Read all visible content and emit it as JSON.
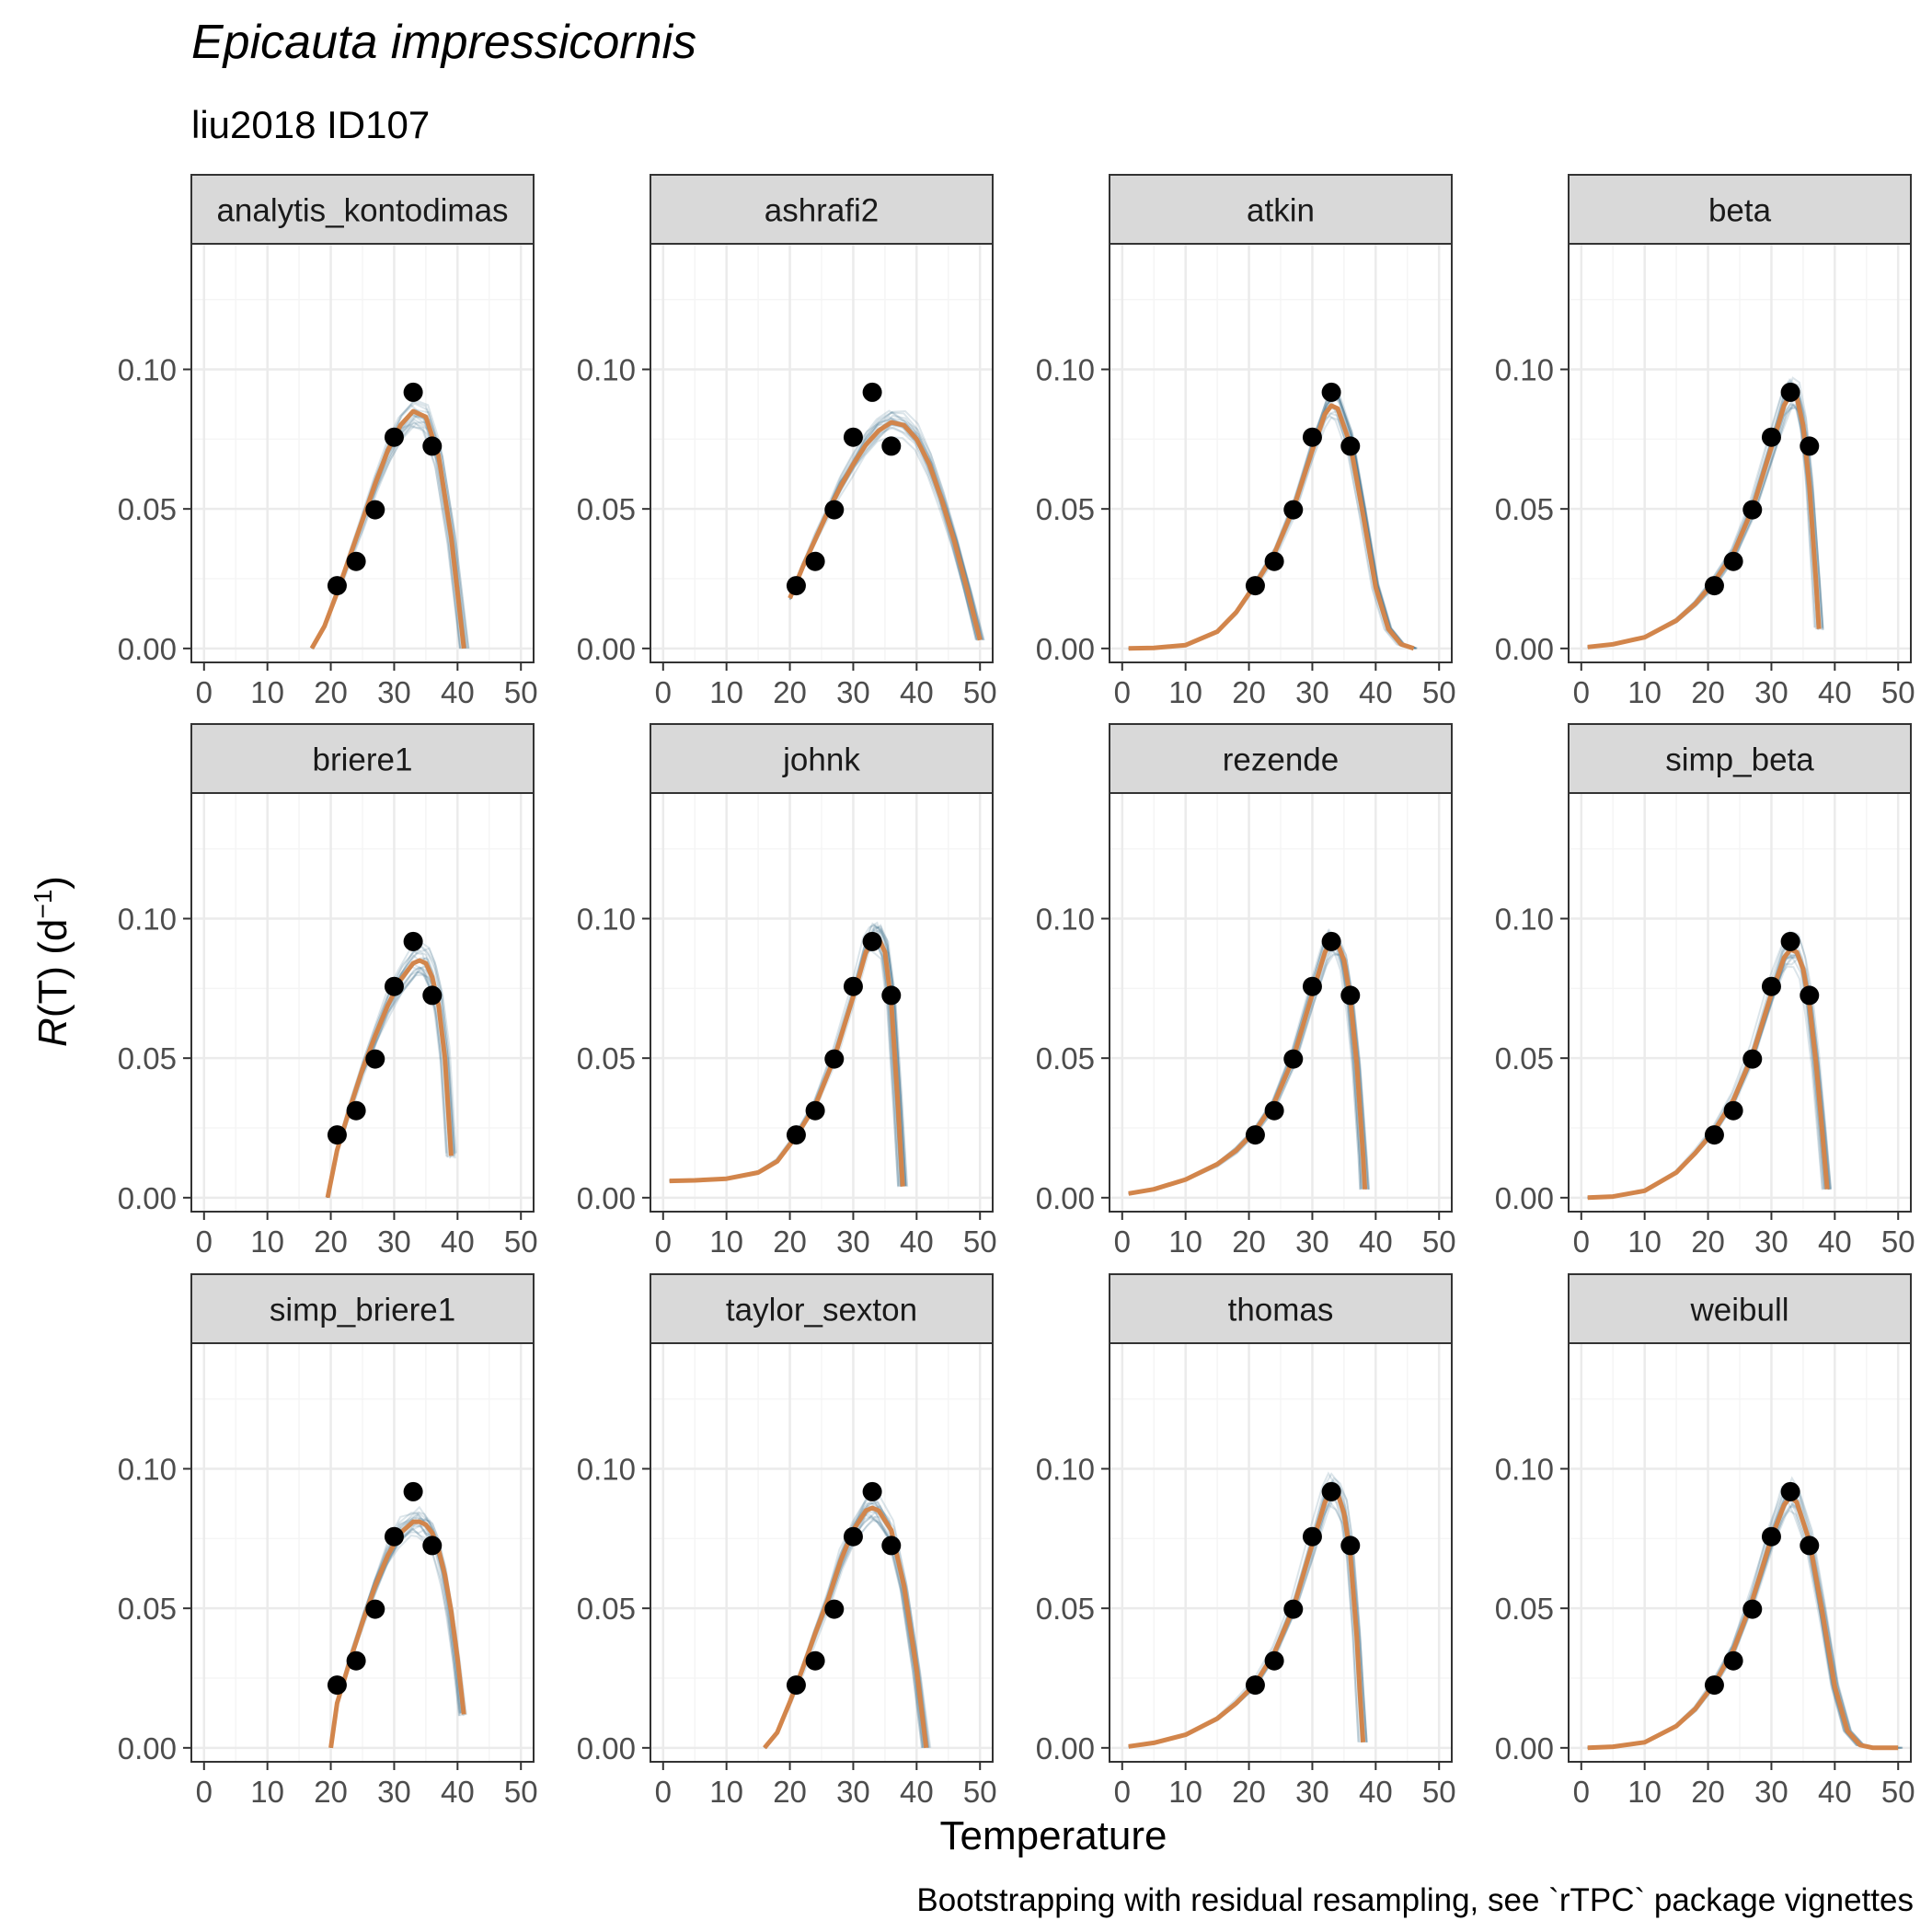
{
  "chart_data": {
    "type": "line",
    "title": "Epicauta impressicornis",
    "subtitle": "liu2018 ID107",
    "xlabel": "Temperature",
    "ylabel_italic": "R",
    "ylabel_rest": "(T) (d",
    "ylabel_sup": "−1",
    "ylabel_close": ")",
    "caption": "Bootstrapping with residual resampling, see `rTPC` package vignettes",
    "xlim": [
      -2,
      52
    ],
    "ylim": [
      -0.005,
      0.145
    ],
    "x_ticks": [
      0,
      10,
      20,
      30,
      40,
      50
    ],
    "x_tick_labels": [
      "0",
      "10",
      "20",
      "30",
      "40",
      "50"
    ],
    "y_ticks": [
      0.0,
      0.05,
      0.1
    ],
    "y_tick_labels": [
      "0.00",
      "0.05",
      "0.10"
    ],
    "grid": true,
    "colors": {
      "fit": "#d2854b",
      "bootstrap": "#3d6f8a",
      "points": "#000000",
      "strip_fill": "#d9d9d9",
      "grid_major": "#ebebeb",
      "grid_minor": "#f5f5f5"
    },
    "observed_points": {
      "x": [
        21,
        24,
        27,
        30,
        33,
        36
      ],
      "y": [
        0.0225,
        0.0312,
        0.0497,
        0.0757,
        0.0918,
        0.0725
      ]
    },
    "panels": [
      {
        "model": "analytis_kontodimas",
        "fit": {
          "x": [
            17,
            19,
            21,
            23,
            25,
            27,
            29,
            31,
            33,
            35,
            37,
            39,
            41
          ],
          "y": [
            0.0,
            0.008,
            0.02,
            0.033,
            0.046,
            0.059,
            0.071,
            0.08,
            0.085,
            0.083,
            0.069,
            0.04,
            0.0
          ]
        }
      },
      {
        "model": "ashrafi2",
        "fit": {
          "x": [
            20,
            22,
            24,
            26,
            28,
            30,
            32,
            34,
            36,
            38,
            40,
            42,
            44,
            46,
            48,
            50
          ],
          "y": [
            0.018,
            0.029,
            0.039,
            0.049,
            0.058,
            0.066,
            0.073,
            0.078,
            0.081,
            0.08,
            0.075,
            0.066,
            0.053,
            0.038,
            0.021,
            0.003
          ]
        }
      },
      {
        "model": "atkin",
        "fit": {
          "x": [
            1,
            5,
            10,
            15,
            18,
            21,
            24,
            27,
            30,
            32,
            33,
            34,
            36,
            38,
            40,
            42,
            44,
            46
          ],
          "y": [
            0.0,
            0.0002,
            0.0012,
            0.006,
            0.013,
            0.023,
            0.034,
            0.05,
            0.071,
            0.084,
            0.087,
            0.086,
            0.073,
            0.048,
            0.022,
            0.007,
            0.0015,
            0.0
          ]
        }
      },
      {
        "model": "beta",
        "fit": {
          "x": [
            1,
            5,
            10,
            15,
            18,
            21,
            24,
            27,
            30,
            32,
            33,
            34,
            35,
            36,
            37,
            37.5
          ],
          "y": [
            0.0005,
            0.0015,
            0.004,
            0.01,
            0.016,
            0.024,
            0.034,
            0.05,
            0.072,
            0.087,
            0.091,
            0.09,
            0.08,
            0.058,
            0.025,
            0.007
          ]
        }
      },
      {
        "model": "briere1",
        "fit": {
          "x": [
            19.5,
            21,
            23,
            25,
            27,
            29,
            31,
            33,
            34,
            35,
            36,
            37,
            38,
            39
          ],
          "y": [
            0.0,
            0.017,
            0.032,
            0.046,
            0.058,
            0.069,
            0.078,
            0.084,
            0.085,
            0.084,
            0.079,
            0.069,
            0.05,
            0.015
          ]
        }
      },
      {
        "model": "johnk",
        "fit": {
          "x": [
            1,
            5,
            10,
            15,
            18,
            21,
            24,
            27,
            30,
            32,
            33,
            34,
            35,
            36,
            37,
            37.8
          ],
          "y": [
            0.006,
            0.0062,
            0.0068,
            0.009,
            0.013,
            0.022,
            0.033,
            0.05,
            0.072,
            0.088,
            0.092,
            0.093,
            0.088,
            0.07,
            0.035,
            0.004
          ]
        }
      },
      {
        "model": "rezende",
        "fit": {
          "x": [
            1,
            5,
            10,
            15,
            18,
            21,
            24,
            27,
            30,
            32,
            33,
            34,
            35,
            36,
            37,
            38,
            38.3
          ],
          "y": [
            0.0015,
            0.003,
            0.0065,
            0.012,
            0.017,
            0.024,
            0.034,
            0.05,
            0.073,
            0.088,
            0.092,
            0.091,
            0.085,
            0.071,
            0.048,
            0.015,
            0.003
          ]
        }
      },
      {
        "model": "simp_beta",
        "fit": {
          "x": [
            1,
            5,
            10,
            15,
            18,
            21,
            24,
            27,
            30,
            32,
            33,
            34,
            35,
            36,
            37,
            38,
            38.8
          ],
          "y": [
            0.0,
            0.0004,
            0.0025,
            0.009,
            0.016,
            0.024,
            0.035,
            0.051,
            0.073,
            0.086,
            0.089,
            0.088,
            0.082,
            0.069,
            0.049,
            0.024,
            0.003
          ]
        }
      },
      {
        "model": "simp_briere1",
        "fit": {
          "x": [
            20,
            21,
            23,
            25,
            27,
            29,
            31,
            33,
            34,
            35,
            36,
            37,
            38,
            39,
            40,
            41
          ],
          "y": [
            0.0,
            0.016,
            0.031,
            0.045,
            0.058,
            0.069,
            0.077,
            0.081,
            0.081,
            0.08,
            0.077,
            0.071,
            0.062,
            0.049,
            0.032,
            0.012
          ]
        }
      },
      {
        "model": "taylor_sexton",
        "fit": {
          "x": [
            16,
            18,
            20,
            22,
            24,
            26,
            28,
            30,
            32,
            33,
            34,
            36,
            38,
            40,
            41.5
          ],
          "y": [
            0.0,
            0.0055,
            0.0165,
            0.0283,
            0.041,
            0.053,
            0.067,
            0.078,
            0.085,
            0.086,
            0.085,
            0.078,
            0.058,
            0.028,
            0.0
          ]
        }
      },
      {
        "model": "thomas",
        "fit": {
          "x": [
            1,
            5,
            10,
            15,
            18,
            21,
            24,
            27,
            30,
            32,
            33,
            34,
            35,
            36,
            37,
            37.5,
            38
          ],
          "y": [
            0.0005,
            0.0018,
            0.0047,
            0.0105,
            0.016,
            0.023,
            0.034,
            0.05,
            0.073,
            0.088,
            0.092,
            0.091,
            0.084,
            0.069,
            0.04,
            0.02,
            0.002
          ]
        }
      },
      {
        "model": "weibull",
        "fit": {
          "x": [
            1,
            5,
            10,
            15,
            18,
            21,
            24,
            27,
            30,
            32,
            33,
            34,
            36,
            38,
            40,
            42,
            44,
            46,
            48,
            50
          ],
          "y": [
            0.0,
            0.0004,
            0.002,
            0.0078,
            0.014,
            0.023,
            0.035,
            0.053,
            0.075,
            0.087,
            0.09,
            0.088,
            0.074,
            0.049,
            0.022,
            0.006,
            0.001,
            0.0,
            0.0,
            0.0
          ]
        }
      }
    ]
  }
}
